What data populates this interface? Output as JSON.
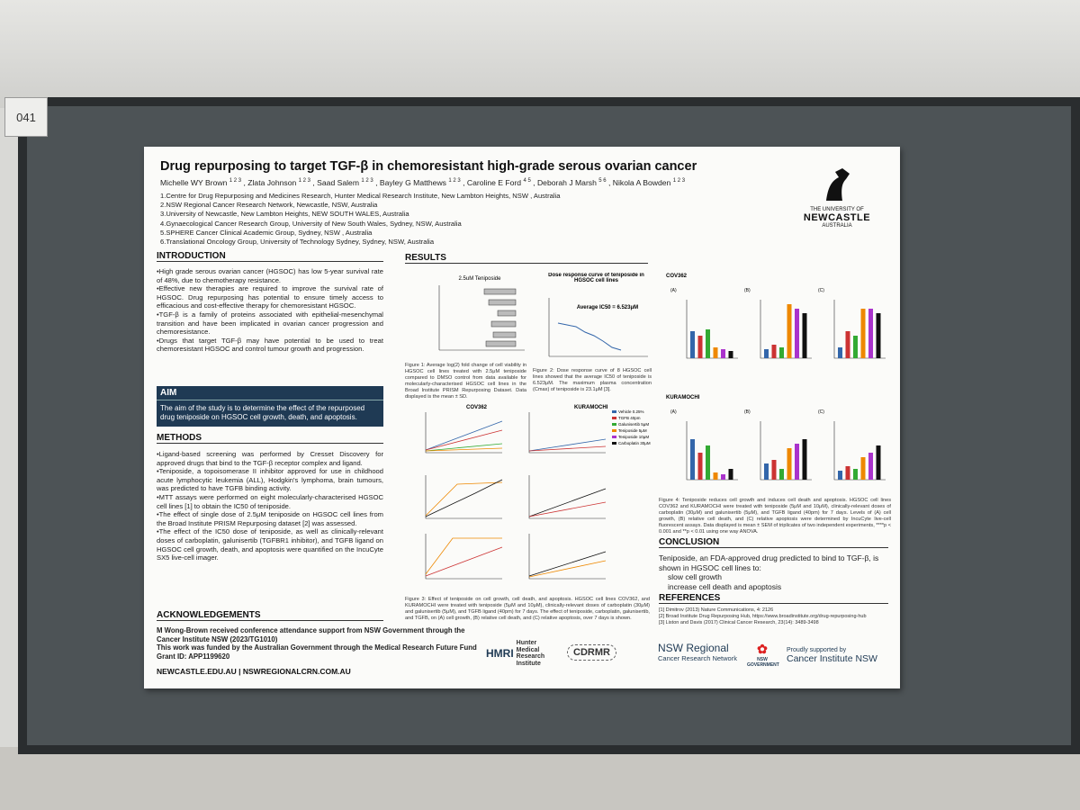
{
  "booth_number": "041",
  "poster": {
    "title": "Drug repurposing to target TGF-β in chemoresistant high-grade serous ovarian cancer",
    "authors": [
      {
        "name": "Michelle WY Brown",
        "affiliations": "1 2 3"
      },
      {
        "name": "Zlata Johnson",
        "affiliations": "1 2 3"
      },
      {
        "name": "Saad Salem",
        "affiliations": "1 2 3"
      },
      {
        "name": "Bayley G Matthews",
        "affiliations": "1 2 3"
      },
      {
        "name": "Caroline E Ford",
        "affiliations": "4 5"
      },
      {
        "name": "Deborah J Marsh",
        "affiliations": "5 6"
      },
      {
        "name": "Nikola A Bowden",
        "affiliations": "1 2 3"
      }
    ],
    "affiliations": [
      "1.Centre for Drug Repurposing and Medicines Research, Hunter Medical Research Institute, New Lambton Heights, NSW , Australia",
      "2.NSW Regional Cancer Research Network, Newcastle, NSW, Australia",
      "3.University of Newcastle, New Lambton Heights, NEW SOUTH WALES, Australia",
      "4.Gynaecological Cancer Research Group, University of New South Wales, Sydney, NSW, Australia",
      "5.SPHERE Cancer Clinical Academic Group, Sydney, NSW , Australia",
      "6.Translational Oncology Group, University of Technology Sydney, Sydney, NSW, Australia"
    ],
    "logo": {
      "line1": "THE UNIVERSITY OF",
      "line2": "NEWCASTLE",
      "line3": "AUSTRALIA"
    },
    "introduction": {
      "heading": "INTRODUCTION",
      "bullets": [
        "High grade serous ovarian cancer (HGSOC) has low 5-year survival rate of 48%, due to chemotherapy resistance.",
        "Effective new therapies are required to improve the survival rate of HGSOC. Drug repurposing has potential to ensure timely access to efficacious and cost-effective therapy for chemoresistant HGSOC.",
        "TGF-β is a family of proteins associated with epithelial-mesenchymal transition and have been implicated in ovarian cancer progression and chemoresistance.",
        "Drugs that target TGF-β may have potential to be used to treat chemoresistant HGSOC and control tumour growth and progression."
      ]
    },
    "aim": {
      "heading": "AIM",
      "text": "The aim of the study is to determine the effect of the repurposed drug teniposide on HGSOC cell growth, death, and apoptosis."
    },
    "methods": {
      "heading": "METHODS",
      "bullets": [
        "Ligand-based screening was performed by Cresset Discovery for approved drugs that bind to the TGF-β receptor complex and ligand.",
        "Teniposide, a topoisomerase II inhibitor approved for use in childhood acute lymphocytic leukemia (ALL), Hodgkin's lymphoma, brain tumours, was predicted to have TGFB binding activity.",
        "MTT assays were performed on eight molecularly-characterised HGSOC cell lines [1] to obtain the IC50 of teniposide.",
        "The effect of single dose of 2.5μM teniposide on HGSOC cell lines from the Broad Institute PRISM Repurposing dataset [2] was assessed.",
        "The effect of the IC50 dose of teniposide, as well as clinically-relevant doses of carboplatin, galunisertib (TGFBR1 inhibitor), and TGFB ligand on HGSOC cell growth, death, and apoptosis were quantified on the IncuCyte SX5 live-cell imager."
      ]
    },
    "acknowledgements": {
      "heading": "ACKNOWLEDGEMENTS",
      "lines": [
        "M Wong-Brown received conference attendance support from NSW Government through the Cancer Institute NSW (2023/TG1010)",
        "This work was funded by the Australian Government through the Medical Research Future Fund Grant ID: APP1199620"
      ],
      "footer": "NEWCASTLE.EDU.AU | NSWREGIONALCRN.COM.AU"
    },
    "results": {
      "heading": "RESULTS",
      "figure1": {
        "title": "2.5uM Teniposide",
        "caption": "Figure 1: Average log(2) fold change of cell viability in HGSOC cell lines treated with 2.5μM teniposide compared to DMSO control from data available for molecularly-characterised HGSOC cell lines in the Broad Institute PRISM Repurposing Dataset. Data displayed is the mean ± SD."
      },
      "figure2": {
        "title": "Dose response curve of teniposide in HGSOC cell lines",
        "annotation": "Average IC50 = 6.523μM",
        "caption": "Figure 2: Dose response curve of 8 HGSOC cell lines showed that the average IC50 of teniposide is 6.523μM. The maximum plasma concentration (Cmax) of teniposide is 23.1μM [3]."
      },
      "figure3": {
        "panel_titles": [
          "COV362",
          "KURAMOCHI"
        ],
        "legend": [
          "Vehicle 0.25%",
          "TGFB 40pm",
          "Galunisertib 5μM",
          "Teniposide 5μM",
          "Teniposide 10μM",
          "Carboplatin 30μM"
        ],
        "caption": "Figure 3: Effect of teniposide on cell growth, cell death, and apoptosis. HGSOC cell lines COV362, and KURAMOCHI were treated with teniposide (5μM and 10μM), clinically-relevant doses of carboplatin (30μM) and galunisertib (5μM), and TGFB ligand (40pm) for 7 days. The effect of teniposide, carboplatin, galunisertib, and TGFB, on (A) cell growth, (B) relative cell death, and (C) relative apoptosis, over 7 days is shown."
      },
      "figure4": {
        "row_titles": [
          "COV362",
          "KURAMOCHI"
        ],
        "panels": [
          "(A)",
          "(B)",
          "(C)"
        ],
        "caption": "Figure 4: Teniposide reduces cell growth and induces cell death and apoptosis. HGSOC cell lines COV362 and KURAMOCHI were treated with teniposide (5μM and 10μM), clinically-relevant doses of carboplatin (30μM) and galunisertib (5μM), and TGFB ligand (40pm) for 7 days. Levels of (A) cell growth, (B) relative cell death, and (C) relative apoptosis were determined by IncuCyte live-cell fluorescent assays. Data displayed is mean ± SEM of triplicates of two independent experiments, ****p < 0.001 and **p < 0.01 using one way ANOVA."
      }
    },
    "conclusion": {
      "heading": "CONCLUSION",
      "intro": "Teniposide, an FDA-approved drug predicted to bind to TGF-β, is shown in HGSOC cell lines to:",
      "bullets": [
        "slow cell growth",
        "increase cell death and apoptosis"
      ]
    },
    "references": {
      "heading": "REFERENCES",
      "items": [
        "[1] Dimitrov (2013) Nature Communications, 4: 2126",
        "[2] Broad Institute Drug Repurposing Hub, https://www.broadinstitute.org/drug-repurposing-hub",
        "[3] Liston and Davis (2017) Clinical Cancer Research, 23(14): 3489-3498"
      ]
    },
    "sponsors": {
      "hmri_short": "HMRI",
      "hmri": "Hunter Medical Research Institute",
      "cdrmr": "CDRMR",
      "nsw_regional": "NSW Regional",
      "nsw_regional_sub": "Cancer Research Network",
      "nsw_gov": "NSW GOVERNMENT",
      "supported_by": "Proudly supported by",
      "cinsw": "Cancer Institute NSW"
    }
  }
}
